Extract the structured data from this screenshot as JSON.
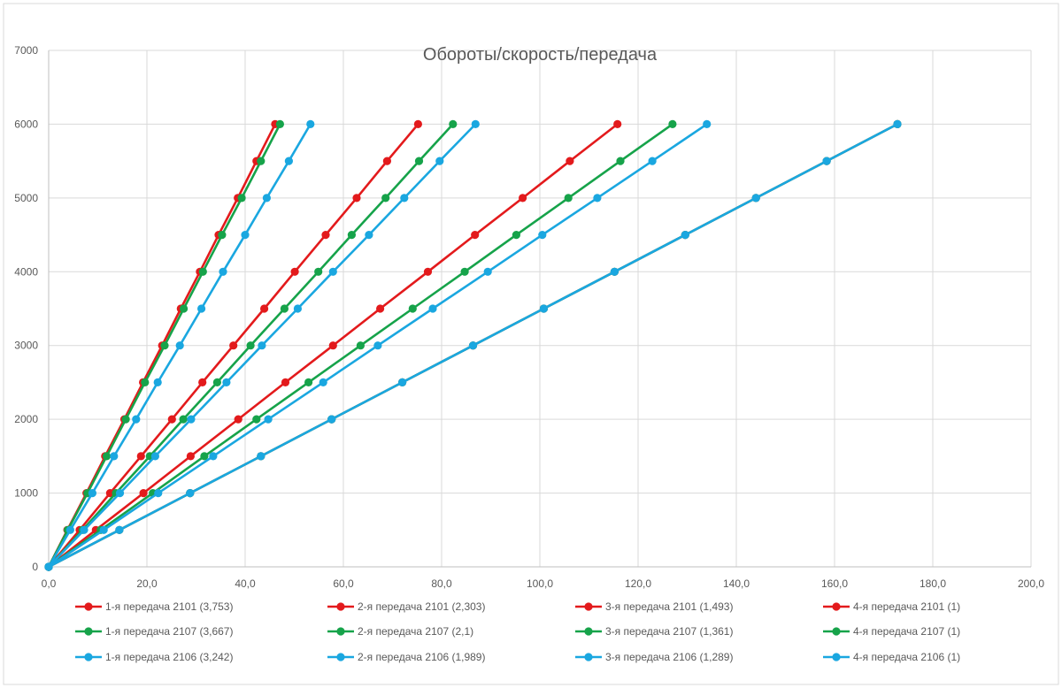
{
  "chart_data": {
    "type": "line",
    "title": "Обороты/скорость/передача",
    "xlabel": "",
    "ylabel": "",
    "xlim": [
      0,
      200
    ],
    "ylim": [
      0,
      7000
    ],
    "x_ticks": [
      "0,0",
      "20,0",
      "40,0",
      "60,0",
      "80,0",
      "100,0",
      "120,0",
      "140,0",
      "160,0",
      "180,0",
      "200,0"
    ],
    "y_ticks": [
      "0",
      "1000",
      "2000",
      "3000",
      "4000",
      "5000",
      "6000",
      "7000"
    ],
    "grid": true,
    "legend_position": "bottom",
    "rpm": [
      0,
      500,
      1000,
      1500,
      2000,
      2500,
      3000,
      3500,
      4000,
      4500,
      5000,
      5500,
      6000
    ],
    "colors": {
      "red": "#e31a1c",
      "green": "#16a34a",
      "blue": "#1aa7e0"
    },
    "series": [
      {
        "name": "1-я передача 2101 (3,753)",
        "color": "red",
        "speed": [
          0,
          3.8,
          7.7,
          11.5,
          15.4,
          19.2,
          23.1,
          26.9,
          30.8,
          34.6,
          38.5,
          42.3,
          46.1
        ]
      },
      {
        "name": "2-я передача 2101 (2,303)",
        "color": "red",
        "speed": [
          0,
          6.3,
          12.5,
          18.8,
          25.1,
          31.3,
          37.6,
          43.9,
          50.1,
          56.4,
          62.7,
          68.9,
          75.2
        ]
      },
      {
        "name": "3-я передача 2101 (1,493)",
        "color": "red",
        "speed": [
          0,
          9.6,
          19.3,
          28.9,
          38.6,
          48.2,
          57.9,
          67.5,
          77.2,
          86.8,
          96.5,
          106.1,
          115.8
        ]
      },
      {
        "name": "4-я передача 2101 (1)",
        "color": "red",
        "speed": [
          0,
          14.4,
          28.8,
          43.2,
          57.6,
          72.0,
          86.4,
          100.8,
          115.2,
          129.6,
          144.0,
          158.4,
          172.8
        ]
      },
      {
        "name": "1-я передача 2107 (3,667)",
        "color": "green",
        "speed": [
          0,
          3.9,
          7.9,
          11.8,
          15.7,
          19.6,
          23.6,
          27.5,
          31.4,
          35.3,
          39.3,
          43.2,
          47.1
        ]
      },
      {
        "name": "2-я передача 2107 (2,1)",
        "color": "green",
        "speed": [
          0,
          6.9,
          13.7,
          20.6,
          27.4,
          34.3,
          41.1,
          48.0,
          54.9,
          61.7,
          68.6,
          75.4,
          82.3
        ]
      },
      {
        "name": "3-я передача 2107 (1,361)",
        "color": "green",
        "speed": [
          0,
          10.6,
          21.2,
          31.7,
          42.3,
          52.9,
          63.5,
          74.1,
          84.7,
          95.2,
          105.8,
          116.4,
          127.0
        ]
      },
      {
        "name": "4-я передача 2107 (1)",
        "color": "green",
        "speed": [
          0,
          14.4,
          28.8,
          43.2,
          57.6,
          72.0,
          86.4,
          100.8,
          115.2,
          129.6,
          144.0,
          158.4,
          172.8
        ]
      },
      {
        "name": "1-я передача 2106 (3,242)",
        "color": "blue",
        "speed": [
          0,
          4.4,
          8.9,
          13.3,
          17.8,
          22.2,
          26.7,
          31.1,
          35.5,
          40.0,
          44.4,
          48.9,
          53.3
        ]
      },
      {
        "name": "2-я передача 2106 (1,989)",
        "color": "blue",
        "speed": [
          0,
          7.2,
          14.5,
          21.7,
          29.0,
          36.2,
          43.4,
          50.7,
          57.9,
          65.2,
          72.4,
          79.6,
          86.9
        ]
      },
      {
        "name": "3-я передача 2106 (1,289)",
        "color": "blue",
        "speed": [
          0,
          11.2,
          22.3,
          33.5,
          44.7,
          55.9,
          67.0,
          78.2,
          89.4,
          100.5,
          111.7,
          122.9,
          134.0
        ]
      },
      {
        "name": "4-я передача 2106 (1)",
        "color": "blue",
        "speed": [
          0,
          14.4,
          28.8,
          43.2,
          57.6,
          72.0,
          86.4,
          100.8,
          115.2,
          129.6,
          144.0,
          158.4,
          172.8
        ]
      }
    ]
  }
}
